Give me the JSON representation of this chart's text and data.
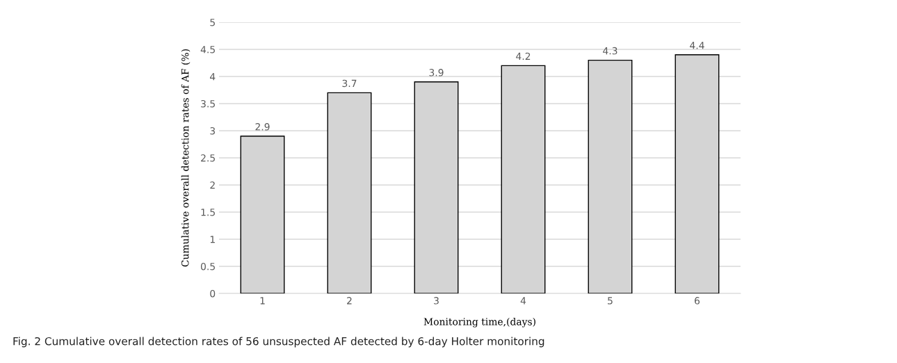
{
  "chart_data": {
    "type": "bar",
    "categories": [
      "1",
      "2",
      "3",
      "4",
      "5",
      "6"
    ],
    "values": [
      2.9,
      3.7,
      3.9,
      4.2,
      4.3,
      4.4
    ],
    "color": "#d4d4d4",
    "xlabel": "Monitoring time,(days)",
    "ylabel": "Cumulative overall detection rates of AF (%)",
    "ylim": [
      0,
      5
    ],
    "yticks": [
      0,
      0.5,
      1,
      1.5,
      2,
      2.5,
      3,
      3.5,
      4,
      4.5,
      5
    ],
    "grid": "y",
    "data_labels": true,
    "annotations": [
      "Fig. 2 Cumulative overall detection rates of 56 unsuspected AF detected by 6-day Holter monitoring"
    ]
  }
}
